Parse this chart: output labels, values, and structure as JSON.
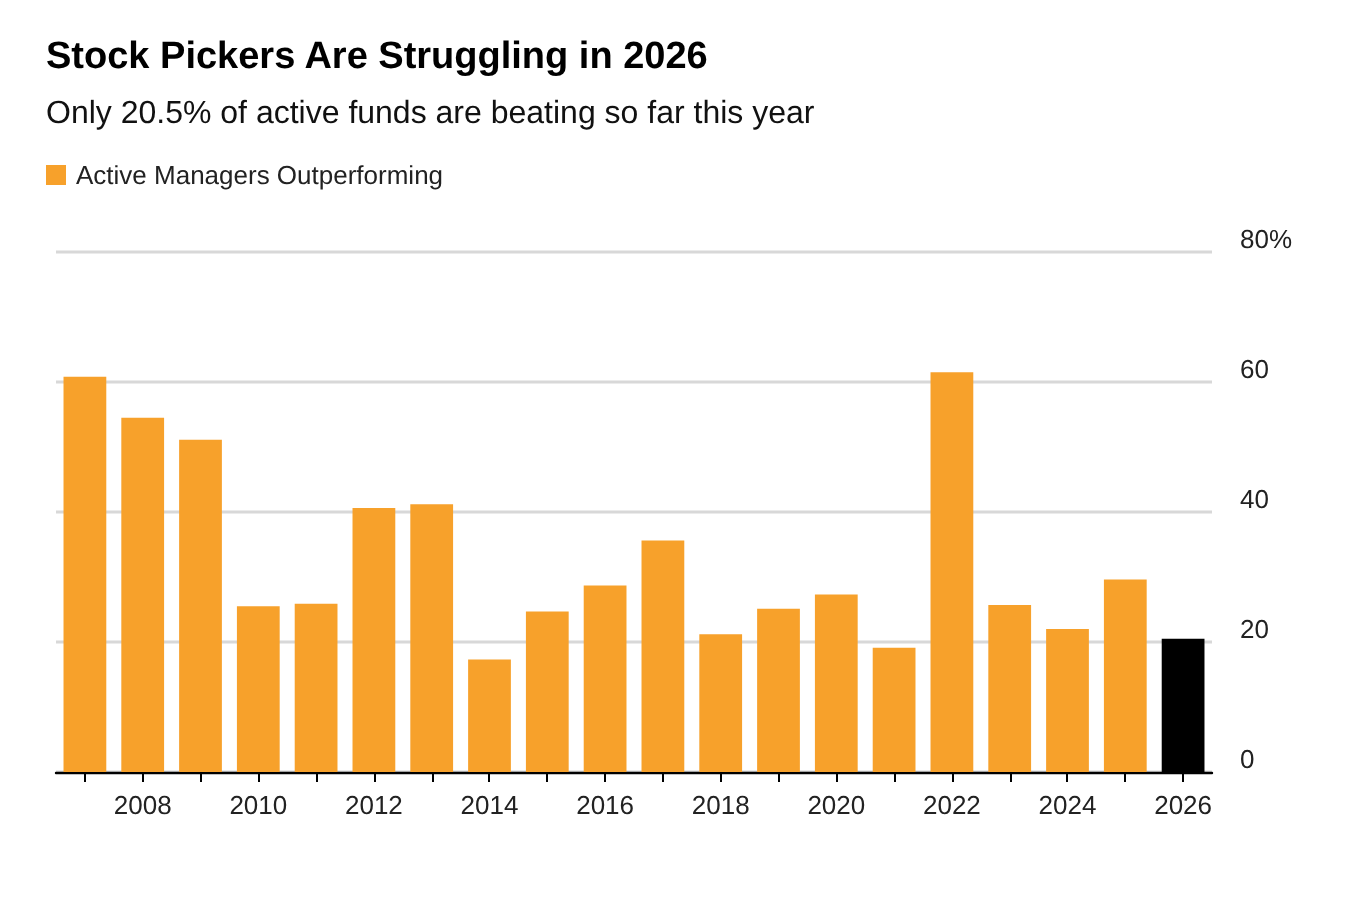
{
  "chart_data": {
    "type": "bar",
    "title": "Stock Pickers Are Struggling in 2026",
    "subtitle": "Only 20.5% of active funds are beating so far this year",
    "categories": [
      null,
      "2008",
      null,
      "2010",
      null,
      "2012",
      null,
      "2014",
      null,
      "2016",
      null,
      "2018",
      null,
      "2020",
      null,
      "2022",
      null,
      "2024",
      null,
      "2026"
    ],
    "series": [
      {
        "name": "Active Managers Outperforming",
        "color": "#f7a12b",
        "values": [
          60.8,
          54.5,
          51.1,
          25.5,
          25.9,
          40.6,
          41.2,
          17.3,
          24.7,
          28.7,
          35.6,
          21.2,
          25.1,
          27.3,
          19.1,
          61.5,
          25.7,
          22.0,
          29.6,
          20.5
        ],
        "colors": [
          "#f7a12b",
          "#f7a12b",
          "#f7a12b",
          "#f7a12b",
          "#f7a12b",
          "#f7a12b",
          "#f7a12b",
          "#f7a12b",
          "#f7a12b",
          "#f7a12b",
          "#f7a12b",
          "#f7a12b",
          "#f7a12b",
          "#f7a12b",
          "#f7a12b",
          "#f7a12b",
          "#f7a12b",
          "#f7a12b",
          "#f7a12b",
          "#000000"
        ]
      }
    ],
    "ylim": [
      0,
      80
    ],
    "yticks": [
      0,
      20,
      40,
      60,
      {
        "value": 80,
        "label": "80%"
      }
    ],
    "grid": "y",
    "legend": "top left"
  }
}
